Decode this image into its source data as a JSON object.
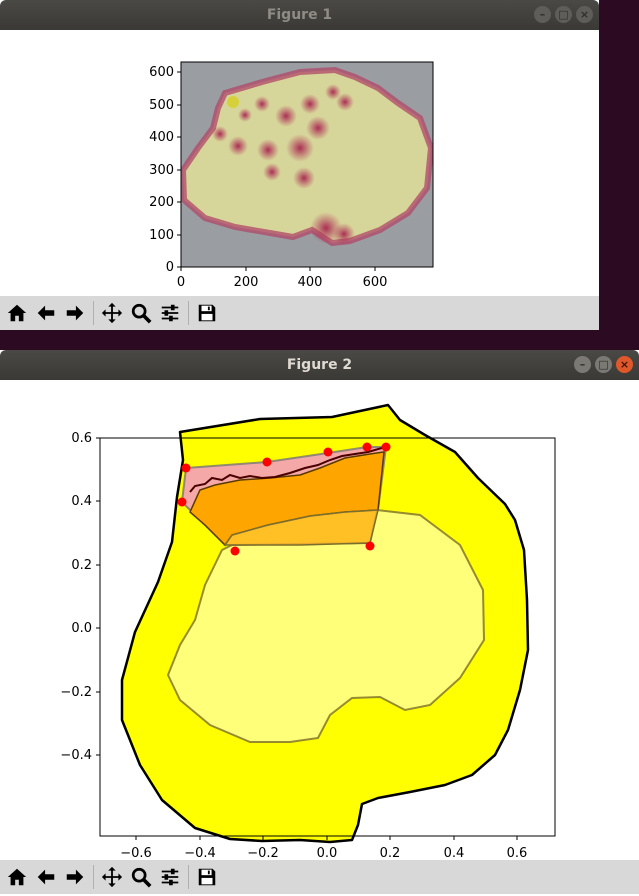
{
  "figure1": {
    "title": "Figure 1",
    "x_ticks": [
      "0",
      "200",
      "400",
      "600"
    ],
    "y_ticks": [
      "0",
      "100",
      "200",
      "300",
      "400",
      "500",
      "600"
    ]
  },
  "figure2": {
    "title": "Figure 2",
    "x_ticks": [
      "−0.6",
      "−0.4",
      "−0.2",
      "0.0",
      "0.2",
      "0.4",
      "0.6"
    ],
    "y_ticks": [
      "−0.4",
      "−0.2",
      "0.0",
      "0.2",
      "0.4",
      "0.6"
    ]
  },
  "toolbar": {
    "buttons": [
      "home-icon",
      "back-arrow-icon",
      "forward-arrow-icon",
      "pan-icon",
      "zoom-icon",
      "configure-subplots-icon",
      "save-icon"
    ]
  },
  "window_buttons": [
    "minimize",
    "maximize",
    "close"
  ],
  "chart_data": [
    {
      "type": "image",
      "xlim": [
        0,
        780
      ],
      "ylim": [
        0,
        630
      ],
      "xticks": [
        0,
        200,
        400,
        600
      ],
      "yticks": [
        0,
        100,
        200,
        300,
        400,
        500,
        600
      ]
    },
    {
      "type": "polygon-overlay",
      "xlim": [
        -0.72,
        0.72
      ],
      "ylim": [
        -0.56,
        0.6
      ],
      "xticks": [
        -0.6,
        -0.4,
        -0.2,
        0.0,
        0.2,
        0.4,
        0.6
      ],
      "yticks": [
        -0.4,
        -0.2,
        0.0,
        0.2,
        0.4,
        0.6
      ],
      "red_points": [
        {
          "x": -0.44,
          "y": 0.505
        },
        {
          "x": -0.185,
          "y": 0.525
        },
        {
          "x": 0.005,
          "y": 0.555
        },
        {
          "x": 0.13,
          "y": 0.57
        },
        {
          "x": 0.185,
          "y": 0.57
        },
        {
          "x": -0.455,
          "y": 0.397
        },
        {
          "x": -0.285,
          "y": 0.24
        },
        {
          "x": 0.135,
          "y": 0.255
        }
      ],
      "colors": {
        "outer_region": "#ffff00",
        "inner_region": "#ffff7a",
        "top_polygon": "#f0a0a0",
        "orange_overlap": "#ffa500",
        "points": "#ff0000"
      }
    }
  ]
}
